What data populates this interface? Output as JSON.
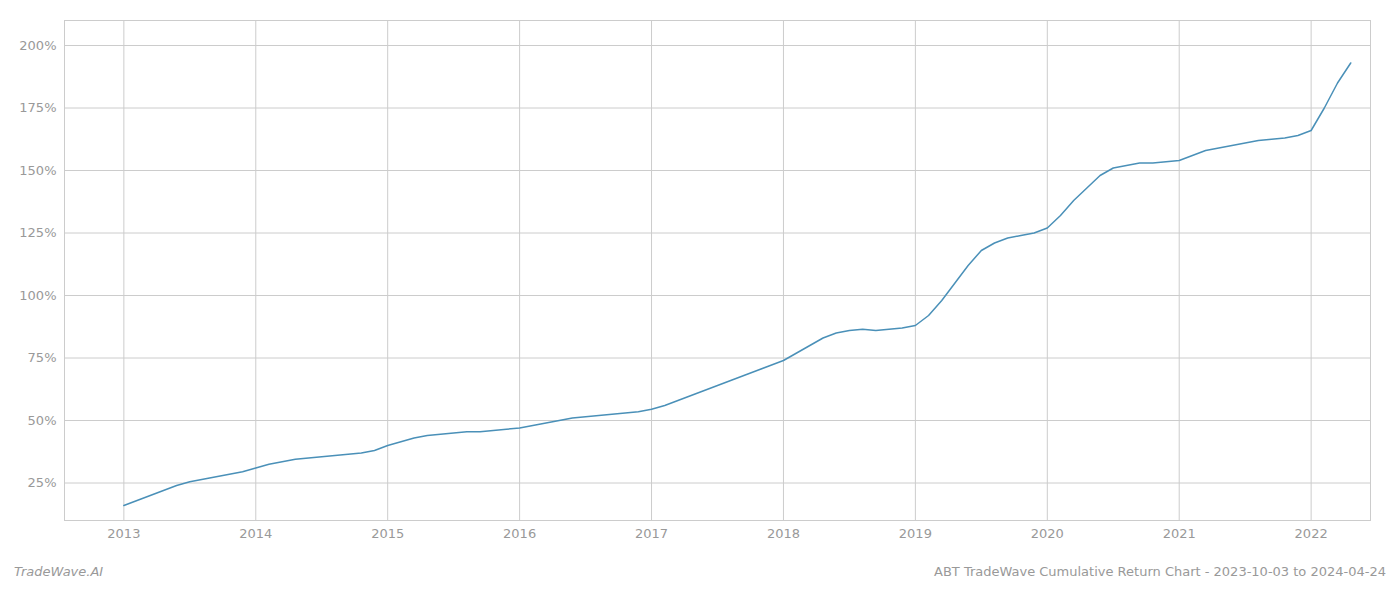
{
  "chart_data": {
    "type": "line",
    "title": "ABT TradeWave Cumulative Return Chart - 2023-10-03 to 2024-04-24",
    "annotations": [
      "TradeWave.AI"
    ],
    "color": "#4a90b8",
    "grid": true,
    "xlim": [
      2012.55,
      2022.45
    ],
    "xticks": [
      2013,
      2014,
      2015,
      2016,
      2017,
      2018,
      2019,
      2020,
      2021,
      2022
    ],
    "ylim": [
      10,
      210
    ],
    "yticks": [
      {
        "value": 25,
        "label": "25%"
      },
      {
        "value": 50,
        "label": "50%"
      },
      {
        "value": 75,
        "label": "75%"
      },
      {
        "value": 100,
        "label": "100%"
      },
      {
        "value": 125,
        "label": "125%"
      },
      {
        "value": 150,
        "label": "150%"
      },
      {
        "value": 175,
        "label": "175%"
      },
      {
        "value": 200,
        "label": "200%"
      }
    ],
    "x": [
      2013.0,
      2013.1,
      2013.2,
      2013.3,
      2013.4,
      2013.5,
      2013.6,
      2013.7,
      2013.8,
      2013.9,
      2014.0,
      2014.1,
      2014.2,
      2014.3,
      2014.4,
      2014.5,
      2014.6,
      2014.7,
      2014.8,
      2014.9,
      2015.0,
      2015.1,
      2015.2,
      2015.3,
      2015.4,
      2015.5,
      2015.6,
      2015.7,
      2015.8,
      2015.9,
      2016.0,
      2016.1,
      2016.2,
      2016.3,
      2016.4,
      2016.5,
      2016.6,
      2016.7,
      2016.8,
      2016.9,
      2017.0,
      2017.1,
      2017.2,
      2017.3,
      2017.4,
      2017.5,
      2017.6,
      2017.7,
      2017.8,
      2017.9,
      2018.0,
      2018.1,
      2018.2,
      2018.3,
      2018.4,
      2018.5,
      2018.6,
      2018.7,
      2018.8,
      2018.9,
      2019.0,
      2019.1,
      2019.2,
      2019.3,
      2019.4,
      2019.5,
      2019.6,
      2019.7,
      2019.8,
      2019.9,
      2020.0,
      2020.1,
      2020.2,
      2020.3,
      2020.4,
      2020.5,
      2020.6,
      2020.7,
      2020.8,
      2020.9,
      2021.0,
      2021.1,
      2021.2,
      2021.3,
      2021.4,
      2021.5,
      2021.6,
      2021.7,
      2021.8,
      2021.9,
      2022.0,
      2022.1,
      2022.2,
      2022.3
    ],
    "values": [
      16,
      18,
      20,
      22,
      24,
      25.5,
      26.5,
      27.5,
      28.5,
      29.5,
      31,
      32.5,
      33.5,
      34.5,
      35,
      35.5,
      36,
      36.5,
      37,
      38,
      40,
      41.5,
      43,
      44,
      44.5,
      45,
      45.5,
      45.5,
      46,
      46.5,
      47,
      48,
      49,
      50,
      51,
      51.5,
      52,
      52.5,
      53,
      53.5,
      54.5,
      56,
      58,
      60,
      62,
      64,
      66,
      68,
      70,
      72,
      74,
      77,
      80,
      83,
      85,
      86,
      86.5,
      86,
      86.5,
      87,
      88,
      92,
      98,
      105,
      112,
      118,
      121,
      123,
      124,
      125,
      127,
      132,
      138,
      143,
      148,
      151,
      152,
      153,
      153,
      153.5,
      154,
      156,
      158,
      159,
      160,
      161,
      162,
      162.5,
      163,
      164,
      166,
      175,
      185,
      193
    ]
  }
}
